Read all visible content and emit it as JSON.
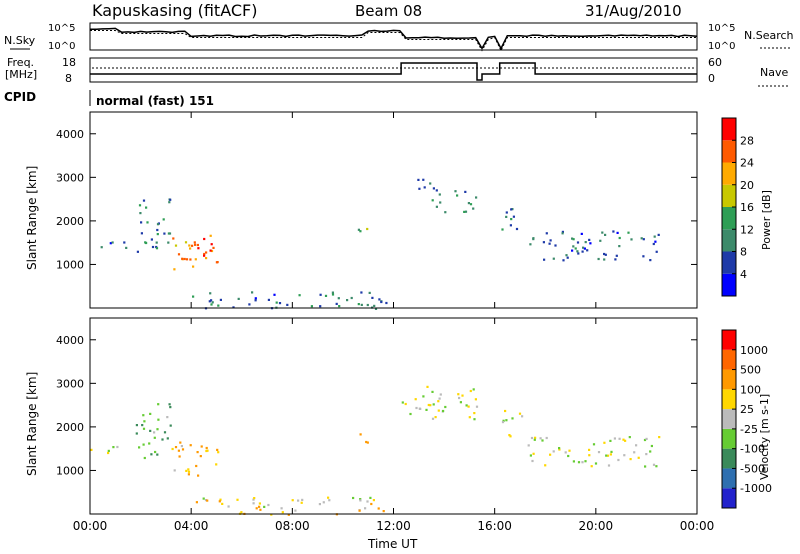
{
  "header": {
    "station": "Kapuskasing (fitACF)",
    "beam": "Beam 08",
    "date": "31/Aug/2010"
  },
  "noise_panel": {
    "left_label": "N.Sky",
    "right_label": "N.Search",
    "ticks_left": [
      "10^5",
      "10^0"
    ],
    "ticks_right": [
      "10^5",
      "10^0"
    ]
  },
  "freq_panel": {
    "left_label_1": "Freq.",
    "left_label_2": "[MHz]",
    "left_ticks": [
      "18",
      "8"
    ],
    "right_label": "Nave",
    "right_ticks": [
      "60",
      "0"
    ]
  },
  "cpid": {
    "label": "CPID",
    "value": "normal (fast) 151"
  },
  "colors": {
    "power_scale": [
      "#0000ff",
      "#1e3aa8",
      "#3c8a6a",
      "#2e9e55",
      "#c8c800",
      "#ffaa00",
      "#ff5a00",
      "#ff0000"
    ],
    "velocity_scale": [
      "#2222cc",
      "#2e6fb0",
      "#3a8a5a",
      "#66cc33",
      "#bbbbbb",
      "#ffd700",
      "#ff9900",
      "#ff6600",
      "#ff0000"
    ]
  },
  "chart_data": [
    {
      "type": "heatmap",
      "name": "power",
      "ylabel": "Slant Range [km]",
      "ylim": [
        0,
        4500
      ],
      "yticks": [
        "1000",
        "2000",
        "3000",
        "4000"
      ],
      "xlim_hours": [
        0,
        24
      ],
      "xticks": [
        "00:00",
        "04:00",
        "08:00",
        "12:00",
        "16:00",
        "20:00",
        "00:00"
      ],
      "colorbar_label": "Power [dB]",
      "colorbar_ticks": [
        "4",
        "8",
        "12",
        "16",
        "20",
        "24",
        "28"
      ],
      "colorbar_range": [
        0,
        32
      ],
      "regions": [
        {
          "t": [
            1.8,
            3.2
          ],
          "r": [
            1300,
            2600
          ],
          "level": 10
        },
        {
          "t": [
            3.2,
            5.2
          ],
          "r": [
            900,
            1700
          ],
          "level": 24
        },
        {
          "t": [
            3.6,
            4.8
          ],
          "r": [
            1100,
            1500
          ],
          "level": 28
        },
        {
          "t": [
            0.0,
            1.5
          ],
          "r": [
            1400,
            1600
          ],
          "level": 6
        },
        {
          "t": [
            10.4,
            11.0
          ],
          "r": [
            1600,
            1900
          ],
          "level": 16
        },
        {
          "t": [
            12.3,
            13.5
          ],
          "r": [
            2700,
            3000
          ],
          "level": 8
        },
        {
          "t": [
            13.5,
            15.3
          ],
          "r": [
            2200,
            2800
          ],
          "level": 10
        },
        {
          "t": [
            16.2,
            17.2
          ],
          "r": [
            1800,
            2400
          ],
          "level": 10
        },
        {
          "t": [
            17.3,
            22.5
          ],
          "r": [
            1100,
            1800
          ],
          "level": 8
        },
        {
          "t": [
            4.0,
            11.8
          ],
          "r": [
            0,
            400
          ],
          "level": 8
        }
      ]
    },
    {
      "type": "heatmap",
      "name": "velocity",
      "ylabel": "Slant Range [km]",
      "ylim": [
        0,
        4500
      ],
      "yticks": [
        "1000",
        "2000",
        "3000",
        "4000"
      ],
      "xlim_hours": [
        0,
        24
      ],
      "xticks": [
        "00:00",
        "04:00",
        "08:00",
        "12:00",
        "16:00",
        "20:00",
        "00:00"
      ],
      "xlabel": "Time UT",
      "colorbar_label": "Velocity [m s-1]",
      "colorbar_ticks": [
        "1000",
        "500",
        "100",
        "25",
        "-25",
        "-100",
        "-500",
        "-1000"
      ],
      "regions": [
        {
          "t": [
            1.8,
            3.2
          ],
          "r": [
            1300,
            2600
          ],
          "value": 100
        },
        {
          "t": [
            3.2,
            5.2
          ],
          "r": [
            900,
            1700
          ],
          "value": -100
        },
        {
          "t": [
            0.0,
            1.5
          ],
          "r": [
            1400,
            1600
          ],
          "value": 0
        },
        {
          "t": [
            10.4,
            11.0
          ],
          "r": [
            1600,
            1900
          ],
          "value": -300
        },
        {
          "t": [
            12.3,
            15.3
          ],
          "r": [
            2200,
            3000
          ],
          "value": 0
        },
        {
          "t": [
            16.2,
            17.2
          ],
          "r": [
            1800,
            2400
          ],
          "value": 0
        },
        {
          "t": [
            17.3,
            22.5
          ],
          "r": [
            1100,
            1800
          ],
          "value": 0
        },
        {
          "t": [
            4.0,
            11.8
          ],
          "r": [
            0,
            400
          ],
          "value": -50
        }
      ]
    }
  ]
}
